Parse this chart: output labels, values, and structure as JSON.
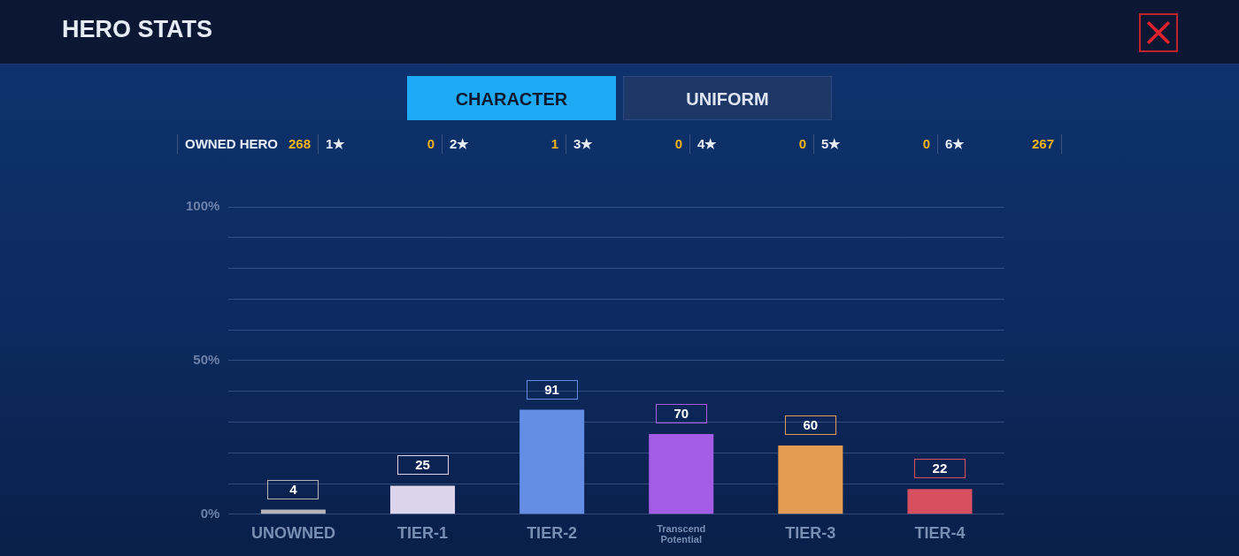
{
  "chart_data": {
    "type": "bar",
    "title": "HERO STATS",
    "categories": [
      "UNOWNED",
      "TIER-1",
      "TIER-2",
      "Transcend Potential",
      "TIER-3",
      "TIER-4"
    ],
    "values": [
      1.5,
      9.3,
      34.0,
      26.1,
      22.4,
      8.2
    ],
    "colors": [
      "#b4b4b8",
      "#dcd4ea",
      "#648ee6",
      "#a45ce6",
      "#e49c54",
      "#d65060"
    ],
    "ylim": [
      0,
      100
    ],
    "yticks": [
      {
        "value": 0,
        "label": "0%"
      },
      {
        "value": 10,
        "label": null
      },
      {
        "value": 20,
        "label": null
      },
      {
        "value": 30,
        "label": null
      },
      {
        "value": 40,
        "label": null
      },
      {
        "value": 50,
        "label": "50%"
      },
      {
        "value": 60,
        "label": null
      },
      {
        "value": 70,
        "label": null
      },
      {
        "value": 80,
        "label": null
      },
      {
        "value": 90,
        "label": null
      },
      {
        "value": 100,
        "label": "100%"
      }
    ],
    "grid": "y",
    "legend": false,
    "annotations": [
      "CHARACTER",
      "UNIFORM",
      "OWNED HERO",
      "268",
      "1★",
      "0",
      "2★",
      "1",
      "3★",
      "0",
      "4★",
      "0",
      "5★",
      "0",
      "6★",
      "267",
      {
        "text": "4",
        "x": "UNOWNED",
        "y": 1.5
      },
      {
        "text": "25",
        "x": "TIER-1",
        "y": 9.3
      },
      {
        "text": "91",
        "x": "TIER-2",
        "y": 34.0
      },
      {
        "text": "70",
        "x": "Transcend Potential",
        "y": 26.1
      },
      {
        "text": "60",
        "x": "TIER-3",
        "y": 22.4
      },
      {
        "text": "22",
        "x": "TIER-4",
        "y": 8.2
      }
    ]
  }
}
